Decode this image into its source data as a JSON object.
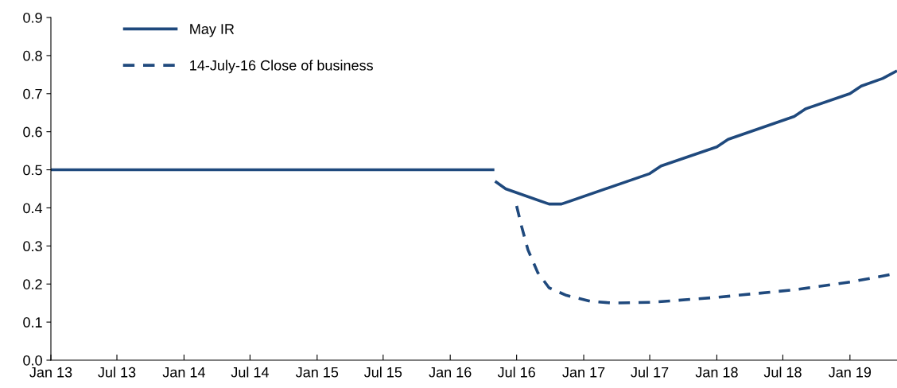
{
  "chart_data": {
    "type": "line",
    "xlim": [
      "2013-01-01",
      "2019-05-10"
    ],
    "xticks": [
      {
        "value": "2013-01-01",
        "label": "Jan 13"
      },
      {
        "value": "2013-07-01",
        "label": "Jul 13"
      },
      {
        "value": "2014-01-01",
        "label": "Jan 14"
      },
      {
        "value": "2014-07-01",
        "label": "Jul 14"
      },
      {
        "value": "2015-01-01",
        "label": "Jan 15"
      },
      {
        "value": "2015-07-01",
        "label": "Jul 15"
      },
      {
        "value": "2016-01-01",
        "label": "Jan 16"
      },
      {
        "value": "2016-07-01",
        "label": "Jul 16"
      },
      {
        "value": "2017-01-01",
        "label": "Jan 17"
      },
      {
        "value": "2017-07-01",
        "label": "Jul 17"
      },
      {
        "value": "2018-01-01",
        "label": "Jan 18"
      },
      {
        "value": "2018-07-01",
        "label": "Jul 18"
      },
      {
        "value": "2019-01-01",
        "label": "Jan 19"
      }
    ],
    "ylim": [
      0,
      0.9
    ],
    "yticks": [
      {
        "value": 0,
        "label": "0.0"
      },
      0.1,
      0.2,
      0.3,
      0.4,
      0.5,
      0.6,
      0.7,
      0.8,
      0.9
    ],
    "grid": false,
    "legend": "top left",
    "series": [
      {
        "name": "May IR",
        "color": "#1f497d",
        "line_style": "solid",
        "x": [
          "2013-01-01",
          "2016-05-01",
          "2016-05-02",
          "2016-05-03",
          "2016-06-01",
          "2016-09-28",
          "2016-11-01",
          "2017-07-01",
          "2017-08-01",
          "2018-01-01",
          "2018-02-01",
          "2018-08-01",
          "2018-09-01",
          "2019-01-01",
          "2019-02-01",
          "2019-04-01",
          "2019-05-10"
        ],
        "values": [
          0.5,
          0.5,
          null,
          0.47,
          0.45,
          0.41,
          0.41,
          0.49,
          0.51,
          0.56,
          0.58,
          0.64,
          0.66,
          0.7,
          0.72,
          0.74,
          0.76
        ]
      },
      {
        "name": "14-July-16 Close of business",
        "color": "#1f497d",
        "line_style": "dashed",
        "x": [
          "2016-07-01",
          "2016-07-15",
          "2016-08-01",
          "2016-08-28",
          "2016-09-28",
          "2016-11-15",
          "2017-01-18",
          "2017-03-20",
          "2017-07-07",
          "2018-01-01",
          "2018-08-04",
          "2019-01-01",
          "2019-05-10"
        ],
        "values": [
          0.405,
          0.35,
          0.29,
          0.23,
          0.19,
          0.17,
          0.155,
          0.15,
          0.152,
          0.165,
          0.185,
          0.205,
          0.228
        ]
      }
    ]
  }
}
